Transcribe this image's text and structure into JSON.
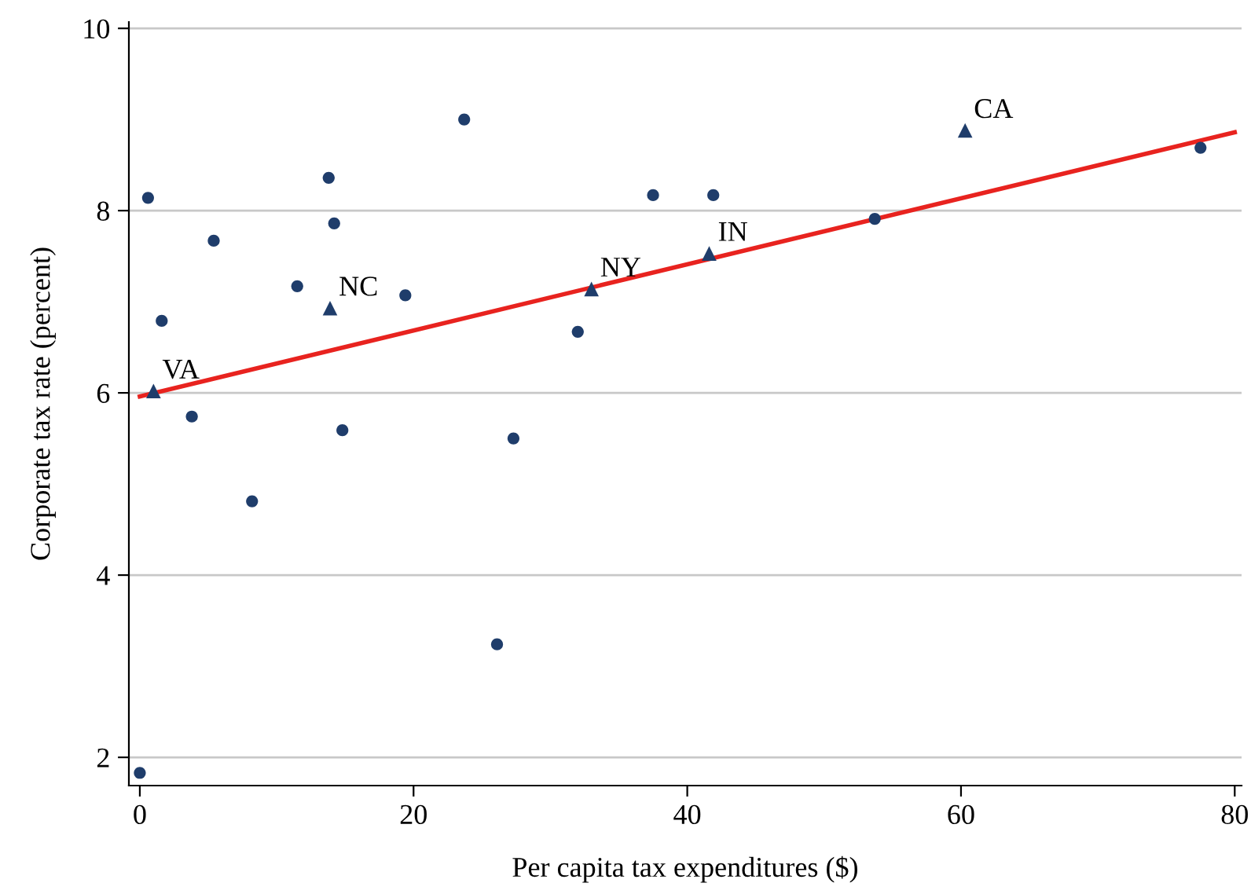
{
  "chart_data": {
    "type": "scatter",
    "xlabel": "Per capita tax expenditures ($)",
    "ylabel": "Corporate tax rate (percent)",
    "xlim": [
      -0.8,
      80.5
    ],
    "ylim": [
      1.69,
      10.07
    ],
    "xticks": [
      0,
      20,
      40,
      60,
      80
    ],
    "yticks": [
      2,
      4,
      6,
      8,
      10
    ],
    "grid": "y",
    "series": [
      {
        "color": "#1f3d6b",
        "marker": "circle",
        "x": [
          0.6,
          1.6,
          3.8,
          5.4,
          8.2,
          11.5,
          13.8,
          14.2,
          14.8,
          19.4,
          23.7,
          26.1,
          27.3,
          32.0,
          37.5,
          41.9,
          53.7,
          77.5,
          0
        ],
        "values": [
          8.14,
          6.79,
          5.74,
          7.67,
          4.81,
          7.17,
          8.36,
          7.86,
          5.59,
          7.07,
          9.0,
          3.24,
          5.5,
          6.67,
          8.17,
          8.17,
          7.91,
          8.69,
          1.83
        ]
      },
      {
        "color": "#1f3d6b",
        "marker": "triangle",
        "x": [
          1.0,
          13.9,
          33.0,
          41.6,
          60.3
        ],
        "values": [
          6.02,
          6.93,
          7.14,
          7.53,
          8.88
        ]
      },
      {
        "type": "line",
        "color": "#e8231f",
        "x": [
          0,
          80
        ],
        "values": [
          5.96,
          8.86
        ]
      }
    ],
    "annotations": [
      {
        "text": "VA",
        "x": 1.0,
        "y": 6.02
      },
      {
        "text": "NC",
        "x": 13.9,
        "y": 6.93
      },
      {
        "text": "NY",
        "x": 33.0,
        "y": 7.14
      },
      {
        "text": "IN",
        "x": 41.6,
        "y": 7.53
      },
      {
        "text": "CA",
        "x": 60.3,
        "y": 8.88
      }
    ]
  }
}
